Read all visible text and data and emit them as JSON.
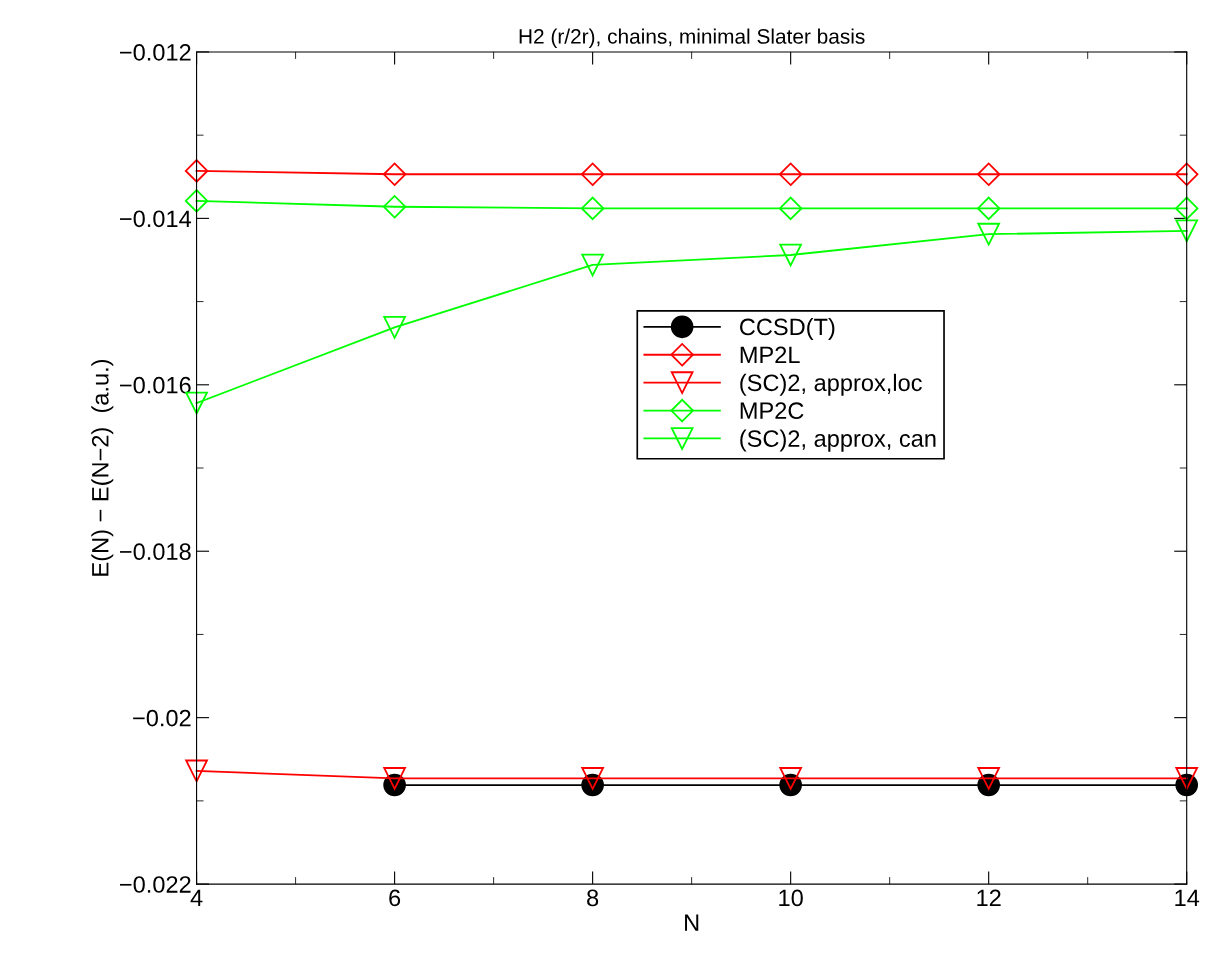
{
  "chart_data": {
    "type": "line",
    "title": "H2 (r/2r), chains, minimal Slater basis",
    "xlabel": "N",
    "ylabel": "E(N) − E(N−2)  (a.u.)",
    "x": [
      4,
      6,
      8,
      10,
      12,
      14
    ],
    "series": [
      {
        "name": "CCSD(T)",
        "color": "#000000",
        "marker": "circle",
        "x": [
          6,
          8,
          10,
          12,
          14
        ],
        "values": [
          -0.02081,
          -0.02081,
          -0.02081,
          -0.02081,
          -0.02081
        ]
      },
      {
        "name": "MP2L",
        "color": "#ff0000",
        "marker": "diamond",
        "values": [
          -0.01343,
          -0.01347,
          -0.01347,
          -0.01347,
          -0.01347,
          -0.01347
        ]
      },
      {
        "name": "(SC)2, approx,loc",
        "color": "#ff0000",
        "marker": "triangle",
        "values": [
          -0.02064,
          -0.02073,
          -0.02073,
          -0.02073,
          -0.02073,
          -0.02073
        ]
      },
      {
        "name": "MP2C",
        "color": "#00ff00",
        "marker": "diamond",
        "values": [
          -0.01379,
          -0.01386,
          -0.01388,
          -0.01388,
          -0.01388,
          -0.01388
        ]
      },
      {
        "name": "(SC)2, approx, can",
        "color": "#00ff00",
        "marker": "triangle",
        "values": [
          -0.01622,
          -0.01531,
          -0.01456,
          -0.01444,
          -0.01419,
          -0.01415
        ]
      }
    ],
    "xlim": [
      4,
      14
    ],
    "xticks": [
      4,
      6,
      8,
      10,
      12,
      14
    ],
    "ylim": [
      -0.022,
      -0.012
    ],
    "yticks": [
      {
        "value": -0.022,
        "label": "−0.022"
      },
      {
        "value": -0.02,
        "label": "−0.02"
      },
      {
        "value": -0.018,
        "label": "−0.018"
      },
      {
        "value": -0.016,
        "label": "−0.016"
      },
      {
        "value": -0.014,
        "label": "−0.014"
      },
      {
        "value": -0.012,
        "label": "−0.012"
      }
    ],
    "grid": false,
    "legend": "center",
    "line_style": "solid"
  }
}
